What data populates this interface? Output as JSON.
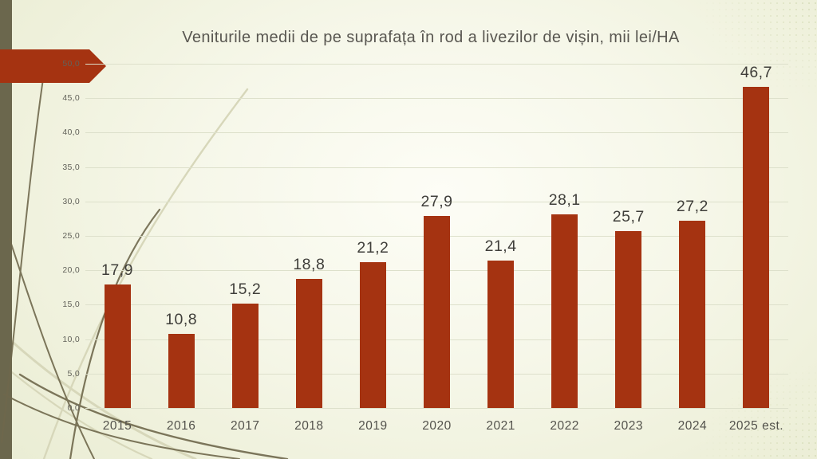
{
  "slide": {
    "title": "Veniturile medii de pe suprafața în rod a livezilor de vișin, mii lei/HA"
  },
  "decor": {
    "accent_red": "#A53311",
    "sidebar_olive": "#6B674D",
    "curve_dark": "#6F684C",
    "curve_light": "#D7D7BA"
  },
  "chart_data": {
    "type": "bar",
    "title": "Veniturile medii de pe suprafața în rod a livezilor de vișin, mii lei/HA",
    "categories": [
      "2015",
      "2016",
      "2017",
      "2018",
      "2019",
      "2020",
      "2021",
      "2022",
      "2023",
      "2024",
      "2025 est."
    ],
    "values": [
      17.9,
      10.8,
      15.2,
      18.8,
      21.2,
      27.9,
      21.4,
      28.1,
      25.7,
      27.2,
      46.7
    ],
    "value_labels": [
      "17,9",
      "10,8",
      "15,2",
      "18,8",
      "21,2",
      "27,9",
      "21,4",
      "28,1",
      "25,7",
      "27,2",
      "46,7"
    ],
    "xlabel": "",
    "ylabel": "",
    "ylim": [
      0,
      50
    ],
    "ytick_step": 5,
    "ytick_labels": [
      "0,0",
      "5,0",
      "10,0",
      "15,0",
      "20,0",
      "25,0",
      "30,0",
      "35,0",
      "40,0",
      "45,0",
      "50,0"
    ],
    "grid": true,
    "legend": "none",
    "bar_color": "#A53311",
    "value_label_color": "#3F3E3A",
    "axis_text_color": "#62625A"
  }
}
